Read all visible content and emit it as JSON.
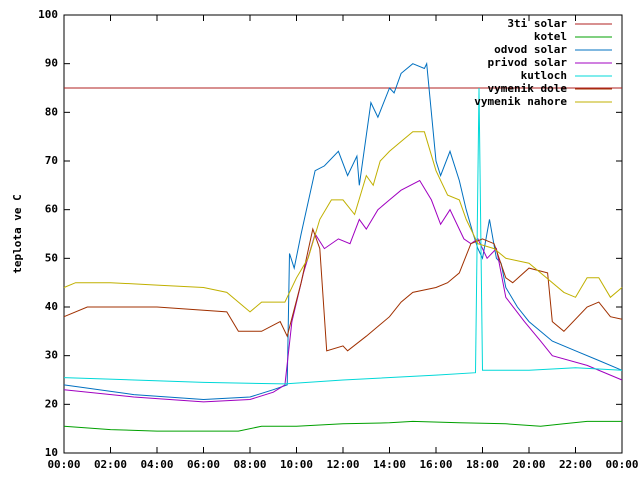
{
  "chart_data": {
    "type": "line",
    "ylabel": "teplota ve C",
    "xlim": [
      0,
      24
    ],
    "ylim": [
      10,
      100
    ],
    "xticks": [
      {
        "value": 0,
        "label": "00:00"
      },
      {
        "value": 2,
        "label": "02:00"
      },
      {
        "value": 4,
        "label": "04:00"
      },
      {
        "value": 6,
        "label": "06:00"
      },
      {
        "value": 8,
        "label": "08:00"
      },
      {
        "value": 10,
        "label": "10:00"
      },
      {
        "value": 12,
        "label": "12:00"
      },
      {
        "value": 14,
        "label": "14:00"
      },
      {
        "value": 16,
        "label": "16:00"
      },
      {
        "value": 18,
        "label": "18:00"
      },
      {
        "value": 20,
        "label": "20:00"
      },
      {
        "value": 22,
        "label": "22:00"
      },
      {
        "value": 24,
        "label": "00:00"
      }
    ],
    "yticks": [
      10,
      20,
      30,
      40,
      50,
      60,
      70,
      80,
      90,
      100
    ],
    "legend": "top-right",
    "series": [
      {
        "name": "3ti solar",
        "color": "#b02020",
        "x": [
          0,
          24
        ],
        "values": [
          85,
          85
        ]
      },
      {
        "name": "kotel",
        "color": "#00a000",
        "x": [
          0,
          2,
          4,
          6,
          7.5,
          8.5,
          10,
          12,
          14,
          15,
          17,
          19,
          20.5,
          21.5,
          22.5,
          24
        ],
        "values": [
          15.5,
          14.8,
          14.5,
          14.5,
          14.5,
          15.5,
          15.5,
          16,
          16.2,
          16.5,
          16.2,
          16,
          15.5,
          16,
          16.5,
          16.5
        ]
      },
      {
        "name": "odvod solar",
        "color": "#0070c0",
        "x": [
          0,
          3,
          6,
          8,
          9,
          9.6,
          9.7,
          9.9,
          10.2,
          10.8,
          11.2,
          11.8,
          12.2,
          12.6,
          12.7,
          13.2,
          13.5,
          14,
          14.2,
          14.5,
          15,
          15.5,
          15.6,
          16,
          16.2,
          16.6,
          17,
          17.3,
          17.6,
          17.8,
          18,
          18.3,
          18.6,
          18.8,
          19,
          19.5,
          20,
          21,
          22,
          23,
          24
        ],
        "values": [
          24,
          22,
          21,
          21.5,
          23,
          24,
          51,
          48,
          55,
          68,
          69,
          72,
          67,
          71,
          65,
          82,
          79,
          85,
          84,
          88,
          90,
          89,
          90,
          70,
          67,
          72,
          66,
          60,
          55,
          52,
          50,
          58,
          50,
          49,
          44,
          40,
          37,
          33,
          31,
          29,
          27
        ]
      },
      {
        "name": "privod solar",
        "color": "#a000c0",
        "x": [
          0,
          3,
          6,
          8,
          9,
          9.5,
          9.8,
          10.3,
          10.8,
          11.2,
          11.8,
          12.3,
          12.7,
          13,
          13.5,
          14,
          14.5,
          15.3,
          15.8,
          16.2,
          16.6,
          17.2,
          17.5,
          17.8,
          18.2,
          18.6,
          19,
          19.8,
          20.5,
          21,
          22.5,
          24
        ],
        "values": [
          23,
          21.5,
          20.5,
          21,
          22.5,
          24,
          37,
          47,
          55,
          52,
          54,
          53,
          58,
          56,
          60,
          62,
          64,
          66,
          62,
          57,
          60,
          54,
          53,
          54,
          50,
          52,
          42,
          37,
          33,
          30,
          28,
          25
        ]
      },
      {
        "name": "kutloch",
        "color": "#00d8d8",
        "x": [
          0,
          6,
          9.5,
          12,
          16,
          17.7,
          17.85,
          18,
          20,
          22,
          24
        ],
        "values": [
          25.5,
          24.5,
          24.2,
          25,
          26,
          26.5,
          85,
          27,
          27,
          27.5,
          27
        ]
      },
      {
        "name": "vymenik dole",
        "color": "#a03000",
        "x": [
          0,
          1,
          4,
          7,
          7.5,
          8.5,
          9.3,
          9.6,
          10.2,
          10.7,
          11,
          11.3,
          12,
          12.2,
          13,
          14,
          14.5,
          15,
          16,
          16.5,
          17,
          17.5,
          18,
          18.5,
          19,
          19.3,
          20,
          20.8,
          21,
          21.5,
          22.5,
          23,
          23.5,
          24
        ],
        "values": [
          38,
          40,
          40,
          39,
          35,
          35,
          37,
          34,
          45,
          56,
          52,
          31,
          32,
          31,
          34,
          38,
          41,
          43,
          44,
          45,
          47,
          53,
          54,
          53,
          46,
          45,
          48,
          47,
          37,
          35,
          40,
          41,
          38,
          37.5
        ]
      },
      {
        "name": "vymenik nahore",
        "color": "#c0b000",
        "x": [
          0,
          0.5,
          2,
          4,
          6,
          7,
          8,
          8.5,
          9.5,
          10,
          10.5,
          11,
          11.5,
          12,
          12.5,
          13,
          13.3,
          13.6,
          14,
          14.5,
          15,
          15.5,
          16,
          16.5,
          17,
          17.3,
          17.8,
          18.5,
          19,
          20,
          20.5,
          21.5,
          22,
          22.5,
          23,
          23.5,
          24
        ],
        "values": [
          44,
          45,
          45,
          44.5,
          44,
          43,
          39,
          41,
          41,
          46,
          50,
          58,
          62,
          62,
          59,
          67,
          65,
          70,
          72,
          74,
          76,
          76,
          68,
          63,
          62,
          58,
          53,
          52,
          50,
          49,
          47,
          43,
          42,
          46,
          46,
          42,
          44
        ]
      }
    ]
  }
}
